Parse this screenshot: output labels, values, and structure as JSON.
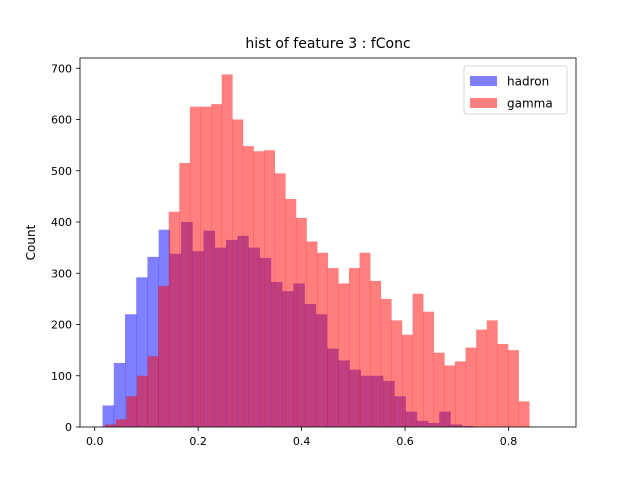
{
  "chart_data": {
    "type": "bar",
    "title": "hist of feature 3 : fConc",
    "xlabel": "",
    "ylabel": "Count",
    "xlim": [
      -0.0285,
      0.9305
    ],
    "ylim": [
      0,
      720
    ],
    "xticks": [
      0.0,
      0.2,
      0.4,
      0.6,
      0.8
    ],
    "xtick_labels": [
      "0.0",
      "0.2",
      "0.4",
      "0.6",
      "0.8"
    ],
    "yticks": [
      0,
      100,
      200,
      300,
      400,
      500,
      600,
      700
    ],
    "ytick_labels": [
      "0",
      "100",
      "200",
      "300",
      "400",
      "500",
      "600",
      "700"
    ],
    "legend": {
      "location": "upper right"
    },
    "grid": false,
    "series": [
      {
        "name": "hadron",
        "color": "#0000ff",
        "alpha": 0.5,
        "bin_edges": [
          0.0151,
          0.0368,
          0.0585,
          0.0802,
          0.1019,
          0.1236,
          0.1453,
          0.167,
          0.1887,
          0.2104,
          0.2321,
          0.2538,
          0.2755,
          0.2972,
          0.3189,
          0.3406,
          0.3623,
          0.384,
          0.4057,
          0.4274,
          0.4491,
          0.4708,
          0.4925,
          0.5142,
          0.5359,
          0.5576,
          0.5793,
          0.601,
          0.6227,
          0.6444,
          0.6661,
          0.6878,
          0.7095,
          0.7312,
          0.7529,
          0.7746,
          0.7963,
          0.818,
          0.8397,
          0.8614,
          0.8831
        ],
        "counts": [
          42,
          125,
          220,
          292,
          332,
          385,
          338,
          400,
          343,
          383,
          350,
          365,
          373,
          350,
          330,
          283,
          265,
          280,
          240,
          220,
          153,
          130,
          112,
          100,
          100,
          90,
          60,
          30,
          12,
          8,
          30,
          5,
          2,
          0,
          0,
          0,
          0,
          0,
          0,
          0
        ]
      },
      {
        "name": "gamma",
        "color": "#ff0000",
        "alpha": 0.5,
        "bin_edges": [
          0.02,
          0.0405,
          0.061,
          0.0815,
          0.102,
          0.1225,
          0.143,
          0.1635,
          0.184,
          0.2045,
          0.225,
          0.2455,
          0.266,
          0.2865,
          0.307,
          0.3275,
          0.348,
          0.3685,
          0.389,
          0.4095,
          0.43,
          0.4505,
          0.471,
          0.4915,
          0.512,
          0.5325,
          0.553,
          0.5735,
          0.594,
          0.6145,
          0.635,
          0.6555,
          0.676,
          0.6965,
          0.717,
          0.7375,
          0.758,
          0.7785,
          0.799,
          0.8195,
          0.84
        ],
        "counts": [
          5,
          15,
          60,
          100,
          138,
          275,
          420,
          515,
          625,
          625,
          630,
          688,
          600,
          548,
          538,
          540,
          495,
          445,
          408,
          362,
          340,
          310,
          280,
          310,
          340,
          285,
          250,
          208,
          180,
          260,
          225,
          145,
          120,
          128,
          155,
          190,
          208,
          162,
          150,
          50
        ]
      }
    ]
  }
}
